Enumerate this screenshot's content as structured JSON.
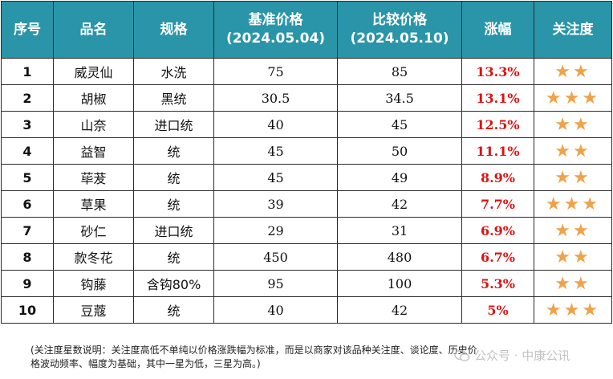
{
  "table": {
    "headers": [
      {
        "line1": "序号",
        "line2": ""
      },
      {
        "line1": "品名",
        "line2": ""
      },
      {
        "line1": "规格",
        "line2": ""
      },
      {
        "line1": "基准价格",
        "line2": "(2024.05.04)"
      },
      {
        "line1": "比较价格",
        "line2": "(2024.05.10)"
      },
      {
        "line1": "涨幅",
        "line2": ""
      },
      {
        "line1": "关注度",
        "line2": ""
      }
    ],
    "rows": [
      {
        "no": "1",
        "name": "威灵仙",
        "spec": "水洗",
        "base": "75",
        "compare": "85",
        "rise": "13.3%",
        "attention": "★★"
      },
      {
        "no": "2",
        "name": "胡椒",
        "spec": "黑统",
        "base": "30.5",
        "compare": "34.5",
        "rise": "13.1%",
        "attention": "★★★"
      },
      {
        "no": "3",
        "name": "山奈",
        "spec": "进口统",
        "base": "40",
        "compare": "45",
        "rise": "12.5%",
        "attention": "★★"
      },
      {
        "no": "4",
        "name": "益智",
        "spec": "统",
        "base": "45",
        "compare": "50",
        "rise": "11.1%",
        "attention": "★★"
      },
      {
        "no": "5",
        "name": "荜茇",
        "spec": "统",
        "base": "45",
        "compare": "49",
        "rise": "8.9%",
        "attention": "★★"
      },
      {
        "no": "6",
        "name": "草果",
        "spec": "统",
        "base": "39",
        "compare": "42",
        "rise": "7.7%",
        "attention": "★★★"
      },
      {
        "no": "7",
        "name": "砂仁",
        "spec": "进口统",
        "base": "29",
        "compare": "31",
        "rise": "6.9%",
        "attention": "★★"
      },
      {
        "no": "8",
        "name": "款冬花",
        "spec": "统",
        "base": "450",
        "compare": "480",
        "rise": "6.7%",
        "attention": "★★"
      },
      {
        "no": "9",
        "name": "钩藤",
        "spec": "含钩80%",
        "base": "95",
        "compare": "100",
        "rise": "5.3%",
        "attention": "★★"
      },
      {
        "no": "10",
        "name": "豆蔻",
        "spec": "统",
        "base": "40",
        "compare": "42",
        "rise": "5%",
        "attention": "★★★"
      }
    ]
  },
  "footnote": {
    "line1": "(关注度星数说明：关注度高低不单纯以价格涨跌幅为标准，而是以商家对该品种关注度、谈论度、历史价",
    "line2": "格波动频率、幅度为基础，其中一星为低，三星为高。)"
  },
  "watermark": {
    "text": "公众号 · 中康公讯"
  },
  "colors": {
    "header_bg": "#2a95a8",
    "rise_text": "#e01010",
    "star": "#f0a24a"
  }
}
